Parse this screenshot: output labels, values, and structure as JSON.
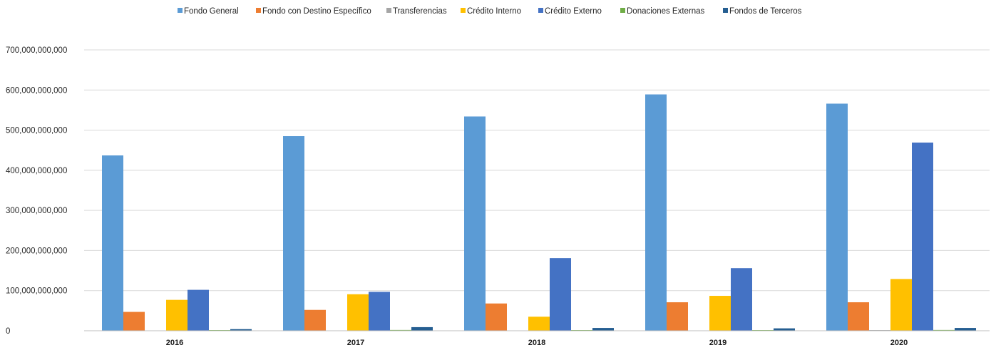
{
  "chart_data": {
    "type": "bar",
    "title": "",
    "xlabel": "",
    "ylabel": "",
    "ylim": [
      0,
      700000000000
    ],
    "yticks": [
      0,
      100000000000,
      200000000000,
      300000000000,
      400000000000,
      500000000000,
      600000000000,
      700000000000
    ],
    "ytick_labels": [
      "0",
      "100,000,000,000",
      "200,000,000,000",
      "300,000,000,000",
      "400,000,000,000",
      "500,000,000,000",
      "600,000,000,000",
      "700,000,000,000"
    ],
    "grid": true,
    "legend_position": "top",
    "categories": [
      "2016",
      "2017",
      "2018",
      "2019",
      "2020"
    ],
    "series": [
      {
        "name": "Fondo General",
        "color": "#5B9BD5",
        "values": [
          437000000000,
          485000000000,
          534000000000,
          589000000000,
          566000000000
        ]
      },
      {
        "name": "Fondo con Destino Específico",
        "color": "#ED7D31",
        "values": [
          47000000000,
          52000000000,
          68000000000,
          71000000000,
          71000000000
        ]
      },
      {
        "name": "Transferencias",
        "color": "#A5A5A5",
        "values": [
          0,
          0,
          0,
          0,
          1000000000
        ]
      },
      {
        "name": "Crédito Interno",
        "color": "#FFC000",
        "values": [
          77000000000,
          91000000000,
          35000000000,
          87000000000,
          129000000000
        ]
      },
      {
        "name": "Crédito Externo",
        "color": "#4472C4",
        "values": [
          102000000000,
          97000000000,
          181000000000,
          156000000000,
          469000000000
        ]
      },
      {
        "name": "Donaciones Externas",
        "color": "#70AD47",
        "values": [
          1000000000,
          2000000000,
          1000000000,
          1000000000,
          2000000000
        ]
      },
      {
        "name": "Fondos de Terceros",
        "color": "#255E91",
        "values": [
          4000000000,
          9000000000,
          7000000000,
          6000000000,
          7000000000
        ]
      }
    ]
  }
}
